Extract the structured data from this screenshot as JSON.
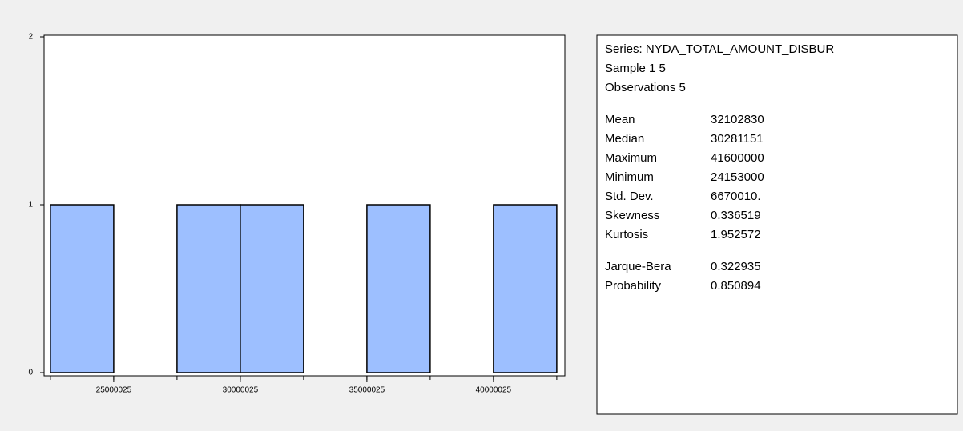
{
  "chart_data": {
    "type": "histogram",
    "bins": [
      22500025,
      25000025,
      27500025,
      30000025,
      32500025,
      35000025,
      37500025,
      40000025,
      42500025
    ],
    "values": [
      1,
      0,
      1,
      1,
      0,
      1,
      0,
      1
    ],
    "color": "#9dbfff",
    "xlim": [
      22250000,
      42820000
    ],
    "xticks": [
      25000025,
      30000025,
      35000025,
      40000025
    ],
    "ylim": [
      0,
      2
    ],
    "yticks": [
      0,
      1,
      2
    ]
  },
  "stats_panel": {
    "header": [
      "Series: NYDA_TOTAL_AMOUNT_DISBUR",
      "Sample 1 5",
      "Observations 5"
    ],
    "stats": [
      {
        "label": "Mean",
        "value": "32102830"
      },
      {
        "label": "Median",
        "value": "30281151"
      },
      {
        "label": "Maximum",
        "value": "41600000"
      },
      {
        "label": "Minimum",
        "value": "24153000"
      },
      {
        "label": "Std. Dev.",
        "value": "6670010."
      },
      {
        "label": "Skewness",
        "value": "0.336519"
      },
      {
        "label": "Kurtosis",
        "value": "1.952572"
      }
    ],
    "tests": [
      {
        "label": "Jarque-Bera",
        "value": "0.322935"
      },
      {
        "label": "Probability",
        "value": "0.850894"
      }
    ]
  }
}
